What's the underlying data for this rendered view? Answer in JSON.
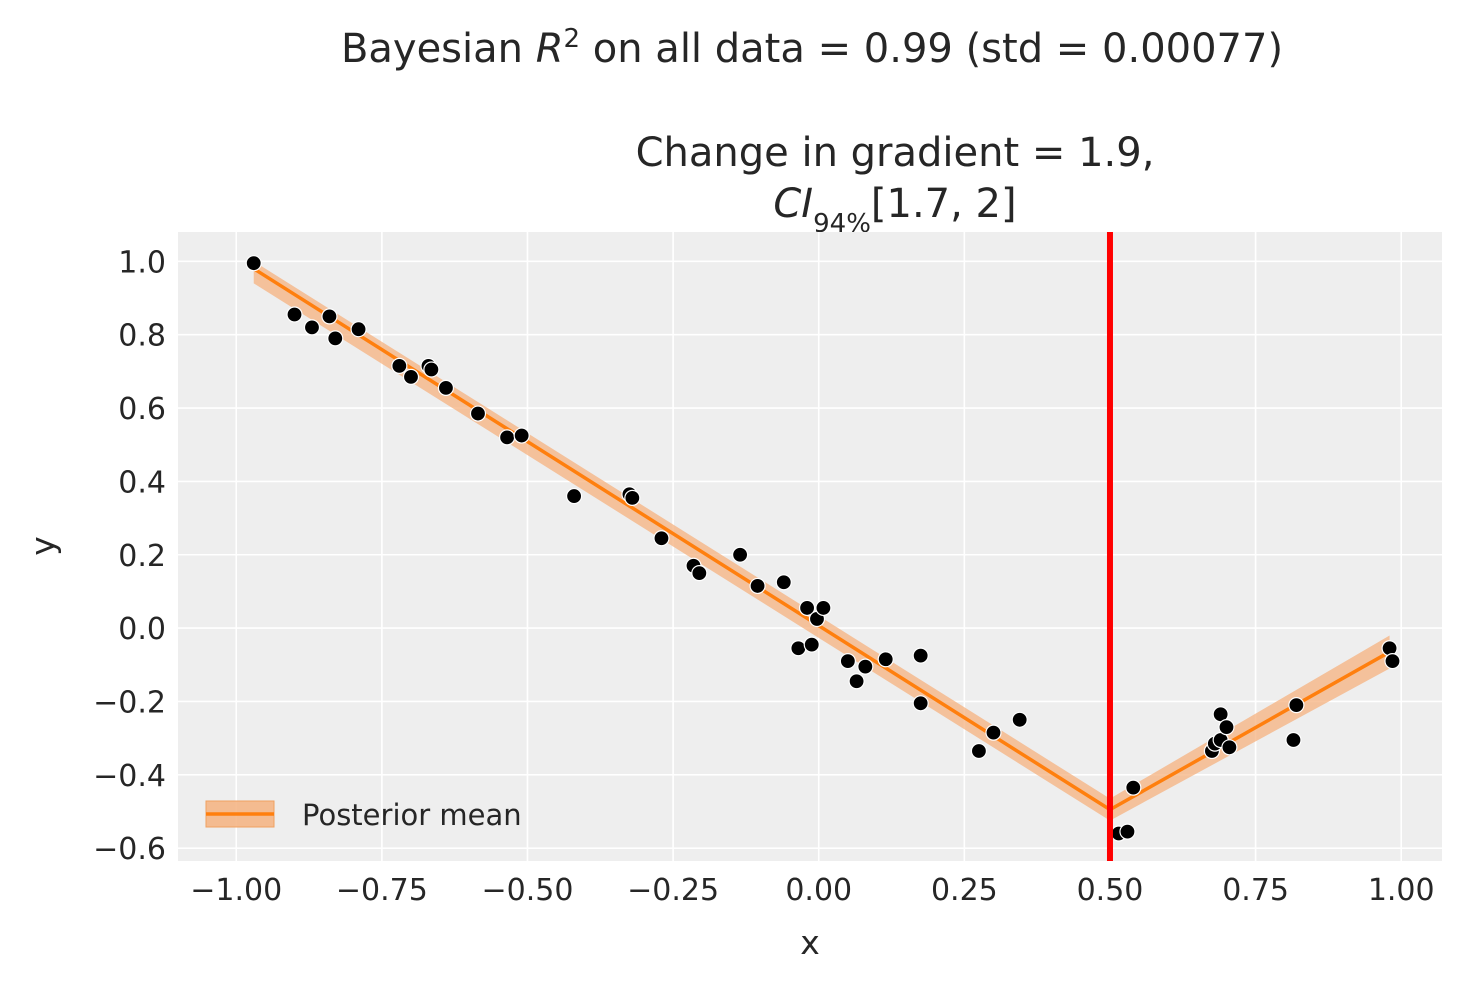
{
  "chart_data": {
    "type": "scatter",
    "suptitle": {
      "prefix": "Bayesian ",
      "math_base": "R",
      "math_sup": "2",
      "suffix": " on all data = 0.99 (std = 0.00077)"
    },
    "title": {
      "line1": "Change in gradient = 1.9,",
      "line2_math_base": "CI",
      "line2_math_sub": "94%",
      "line2_rest": "[1.7, 2]"
    },
    "xlabel": "x",
    "ylabel": "y",
    "xlim": [
      -1.1,
      1.07
    ],
    "ylim": [
      -0.635,
      1.08
    ],
    "xticks": [
      -1.0,
      -0.75,
      -0.5,
      -0.25,
      0.0,
      0.25,
      0.5,
      0.75,
      1.0
    ],
    "xtick_labels": [
      "−1.00",
      "−0.75",
      "−0.50",
      "−0.25",
      "0.00",
      "0.25",
      "0.50",
      "0.75",
      "1.00"
    ],
    "yticks": [
      1.0,
      0.8,
      0.6,
      0.4,
      0.2,
      0.0,
      -0.2,
      -0.4,
      -0.6
    ],
    "ytick_labels": [
      "1.0",
      "0.8",
      "0.6",
      "0.4",
      "0.2",
      "0.0",
      "−0.2",
      "−0.4",
      "−0.6"
    ],
    "grid": true,
    "breakpoint_x": 0.5,
    "legend": {
      "label": "Posterior mean",
      "position": "lower-left"
    },
    "colors": {
      "background": "#eeeeee",
      "grid": "#ffffff",
      "mean_line": "#ff7f0e",
      "band": "#f5b27f",
      "points": "#000000",
      "breakpoint": "#ff0000"
    },
    "mean_line": {
      "x": [
        -0.97,
        0.5,
        0.98
      ],
      "y": [
        0.98,
        -0.495,
        -0.065
      ]
    },
    "band": {
      "x": [
        -0.97,
        0.5,
        0.98
      ],
      "upper": [
        1.0,
        -0.465,
        -0.02
      ],
      "lower": [
        0.94,
        -0.525,
        -0.11
      ]
    },
    "points": {
      "x": [
        -0.97,
        -0.9,
        -0.87,
        -0.84,
        -0.83,
        -0.79,
        -0.72,
        -0.7,
        -0.67,
        -0.665,
        -0.64,
        -0.585,
        -0.535,
        -0.51,
        -0.42,
        -0.325,
        -0.32,
        -0.27,
        -0.215,
        -0.205,
        -0.135,
        -0.105,
        -0.06,
        -0.035,
        -0.02,
        -0.012,
        -0.003,
        0.008,
        0.05,
        0.065,
        0.08,
        0.115,
        0.175,
        0.175,
        0.275,
        0.3,
        0.345,
        0.515,
        0.53,
        0.54,
        0.675,
        0.68,
        0.69,
        0.69,
        0.7,
        0.705,
        0.815,
        0.82,
        0.98,
        0.985
      ],
      "y": [
        0.995,
        0.855,
        0.82,
        0.85,
        0.79,
        0.815,
        0.715,
        0.685,
        0.715,
        0.705,
        0.655,
        0.585,
        0.52,
        0.525,
        0.36,
        0.365,
        0.355,
        0.245,
        0.17,
        0.15,
        0.2,
        0.115,
        0.125,
        -0.055,
        0.055,
        -0.045,
        0.025,
        0.055,
        -0.09,
        -0.145,
        -0.105,
        -0.085,
        -0.205,
        -0.075,
        -0.335,
        -0.285,
        -0.25,
        -0.56,
        -0.555,
        -0.435,
        -0.335,
        -0.315,
        -0.305,
        -0.235,
        -0.27,
        -0.325,
        -0.305,
        -0.21,
        -0.055,
        -0.09
      ]
    }
  }
}
